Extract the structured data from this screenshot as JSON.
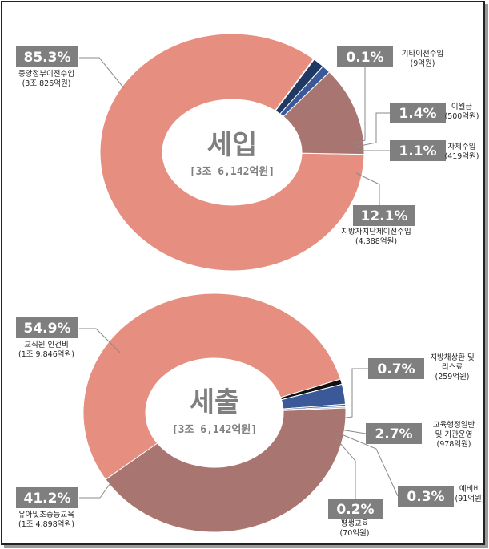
{
  "chart_data": [
    {
      "type": "pie",
      "title": "세입",
      "subtitle": "[3조 6,142억원]",
      "slices": [
        {
          "label_lines": [
            "중앙정부이전수입",
            "(3조 826억원)"
          ],
          "value": 85.3,
          "value_label": "85.3%",
          "color": "#e68e7f"
        },
        {
          "label_lines": [
            "기타이전수입",
            "(9억원)"
          ],
          "value": 0.1,
          "value_label": "0.1%",
          "color": "#9dadc4"
        },
        {
          "label_lines": [
            "이월금",
            "(500억원)"
          ],
          "value": 1.4,
          "value_label": "1.4%",
          "color": "#1f3864"
        },
        {
          "label_lines": [
            "자체수입",
            "(419억원)"
          ],
          "value": 1.1,
          "value_label": "1.1%",
          "color": "#3b5998"
        },
        {
          "label_lines": [
            "지방자치단체이전수입",
            "(4,388억원)"
          ],
          "value": 12.1,
          "value_label": "12.1%",
          "color": "#a97570"
        }
      ]
    },
    {
      "type": "pie",
      "title": "세출",
      "subtitle": "[3조 6,142억원]",
      "slices": [
        {
          "label_lines": [
            "교직원 인건비",
            "(1조 9,846억원)"
          ],
          "value": 54.9,
          "value_label": "54.9%",
          "color": "#e68e7f"
        },
        {
          "label_lines": [
            "지방채상환 및",
            "리스료",
            "(259억원)"
          ],
          "value": 0.7,
          "value_label": "0.7%",
          "color": "#111111"
        },
        {
          "label_lines": [
            "교육행정일반",
            "및 기관운영",
            "(978억원)"
          ],
          "value": 2.7,
          "value_label": "2.7%",
          "color": "#3b5998"
        },
        {
          "label_lines": [
            "예비비",
            "(91억원)"
          ],
          "value": 0.3,
          "value_label": "0.3%",
          "color": "#4a6a9c"
        },
        {
          "label_lines": [
            "평생교육",
            "(70억원)"
          ],
          "value": 0.2,
          "value_label": "0.2%",
          "color": "#9dadc4"
        },
        {
          "label_lines": [
            "유아및초중등교육",
            "(1조 4,898억원)"
          ],
          "value": 41.2,
          "value_label": "41.2%",
          "color": "#a97570"
        }
      ]
    }
  ]
}
